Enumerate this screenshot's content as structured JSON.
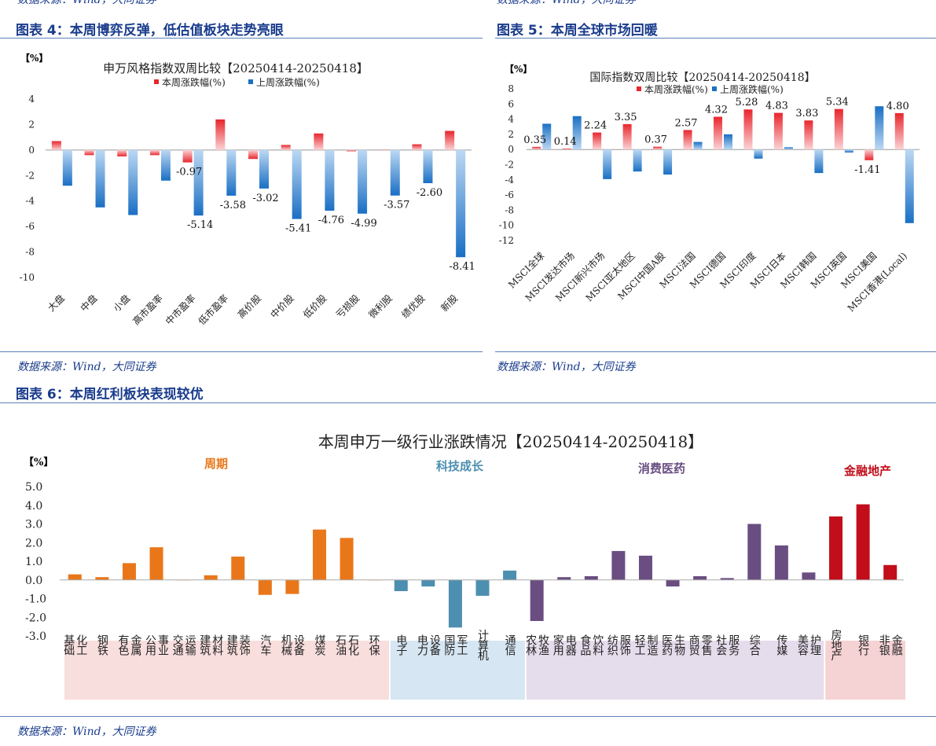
{
  "header_sources": [
    "数据来源：Wind，大同证券",
    "数据来源：Wind，大同证券"
  ],
  "fig4": {
    "caption": "图表 4：本周博弈反弹，低估值板块走势亮眼",
    "source": "数据来源：Wind，大同证券"
  },
  "fig5": {
    "caption": "图表 5：本周全球市场回暖",
    "source": "数据来源：Wind，大同证券"
  },
  "fig6": {
    "caption": "图表 6：本周红利板块表现较优",
    "source": "数据来源：Wind，大同证券"
  },
  "colors": {
    "red": "#e8262d",
    "blue": "#1a6fc4",
    "orange": "#e9771a",
    "teal": "#4d8fb0",
    "purple": "#6a4e82",
    "darkred": "#c10e1a",
    "band_orange": "#f8dedd",
    "band_teal": "#d6e6f2",
    "band_purple": "#e5dcec",
    "band_red": "#f5d2d3"
  },
  "chart_data": [
    {
      "type": "bar",
      "title": "申万风格指数双周比较【20250414-20250418】",
      "unit": "【%】",
      "ylim": [
        -10,
        4
      ],
      "yticks": [
        4,
        2,
        0,
        -2,
        -4,
        -6,
        -8,
        -10
      ],
      "categories": [
        "大盘",
        "中盘",
        "小盘",
        "高市盈率",
        "中市盈率",
        "低市盈率",
        "高价股",
        "中价股",
        "低价股",
        "亏损股",
        "微利股",
        "绩优股",
        "新股"
      ],
      "series": [
        {
          "name": "本周涨跌幅(%)",
          "values": [
            0.7,
            -0.4,
            -0.5,
            -0.4,
            -0.97,
            2.4,
            -0.7,
            0.4,
            1.3,
            -0.1,
            0.0,
            0.45,
            1.5
          ]
        },
        {
          "name": "上周涨跌幅(%)",
          "values": [
            -2.8,
            -4.5,
            -5.1,
            -2.4,
            -5.14,
            -3.58,
            -3.02,
            -5.41,
            -4.76,
            -4.99,
            -3.57,
            -2.6,
            -8.41
          ]
        }
      ],
      "data_labels": [
        {
          "category": "中市盈率",
          "series": 0,
          "text": "-0.97"
        },
        {
          "category": "中市盈率",
          "series": 1,
          "text": "-5.14"
        },
        {
          "category": "低市盈率",
          "series": 1,
          "text": "-3.58"
        },
        {
          "category": "高价股",
          "series": 1,
          "text": "-3.02"
        },
        {
          "category": "中价股",
          "series": 1,
          "text": "-5.41"
        },
        {
          "category": "低价股",
          "series": 1,
          "text": "-4.76"
        },
        {
          "category": "亏损股",
          "series": 1,
          "text": "-4.99"
        },
        {
          "category": "微利股",
          "series": 1,
          "text": "-3.57"
        },
        {
          "category": "绩优股",
          "series": 1,
          "text": "-2.60"
        },
        {
          "category": "新股",
          "series": 1,
          "text": "-8.41"
        }
      ],
      "legend": "top-center"
    },
    {
      "type": "bar",
      "title": "国际指数双周比较【20250414-20250418】",
      "unit": "【%】",
      "ylim": [
        -12,
        8
      ],
      "yticks": [
        8,
        6,
        4,
        2,
        0,
        -2,
        -4,
        -6,
        -8,
        -10,
        -12
      ],
      "categories": [
        "MSCI全球",
        "MSCI发达市场",
        "MSCI新兴市场",
        "MSCI亚太地区",
        "MSCI中国A股",
        "MSCI法国",
        "MSCI德国",
        "MSCI印度",
        "MSCI日本",
        "MSCI韩国",
        "MSCI英国",
        "MSCI美国",
        "MSCI香港(Local)"
      ],
      "series": [
        {
          "name": "本周涨跌幅(%)",
          "values": [
            0.35,
            0.14,
            2.24,
            3.35,
            0.37,
            2.57,
            4.32,
            5.28,
            4.83,
            3.83,
            5.34,
            -1.41,
            4.8
          ]
        },
        {
          "name": "上周涨跌幅(%)",
          "values": [
            3.4,
            4.4,
            -3.9,
            -2.9,
            -3.3,
            1.0,
            2.0,
            -1.2,
            0.3,
            -3.1,
            -0.4,
            5.7,
            -9.7
          ]
        }
      ],
      "data_labels": [
        {
          "category": "MSCI全球",
          "series": 0,
          "text": "0.35"
        },
        {
          "category": "MSCI发达市场",
          "series": 0,
          "text": "0.14"
        },
        {
          "category": "MSCI新兴市场",
          "series": 0,
          "text": "2.24"
        },
        {
          "category": "MSCI亚太地区",
          "series": 0,
          "text": "3.35"
        },
        {
          "category": "MSCI中国A股",
          "series": 0,
          "text": "0.37"
        },
        {
          "category": "MSCI法国",
          "series": 0,
          "text": "2.57"
        },
        {
          "category": "MSCI德国",
          "series": 0,
          "text": "4.32"
        },
        {
          "category": "MSCI印度",
          "series": 0,
          "text": "5.28"
        },
        {
          "category": "MSCI日本",
          "series": 0,
          "text": "4.83"
        },
        {
          "category": "MSCI韩国",
          "series": 0,
          "text": "3.83"
        },
        {
          "category": "MSCI英国",
          "series": 0,
          "text": "5.34"
        },
        {
          "category": "MSCI美国",
          "series": 0,
          "text": "-1.41"
        },
        {
          "category": "MSCI香港(Local)",
          "series": 0,
          "text": "4.80"
        }
      ],
      "legend": "top-center"
    },
    {
      "type": "bar",
      "title": "本周申万一级行业涨跌情况【20250414-20250418】",
      "unit": "【%】",
      "ylim": [
        -3,
        5
      ],
      "yticks": [
        "5.0",
        "4.0",
        "3.0",
        "2.0",
        "1.0",
        "0.0",
        "-1.0",
        "-2.0",
        "-3.0"
      ],
      "groups": [
        {
          "name": "周期",
          "color": "orange",
          "band": "band_orange",
          "count": 12
        },
        {
          "name": "科技成长",
          "color": "teal",
          "band": "band_teal",
          "count": 5
        },
        {
          "name": "消费医药",
          "color": "purple",
          "band": "band_purple",
          "count": 11
        },
        {
          "name": "金融地产",
          "color": "darkred",
          "band": "band_red",
          "count": 3
        }
      ],
      "categories": [
        "基础化工",
        "钢铁",
        "有色金属",
        "公用事业",
        "交通运输",
        "建筑材料",
        "建筑装饰",
        "汽车",
        "机械设备",
        "煤炭",
        "石油石化",
        "环保",
        "电子",
        "电力设备",
        "国防军工",
        "计算机",
        "通信",
        "农林牧渔",
        "家用电器",
        "食品饮料",
        "纺织服饰",
        "轻工制造",
        "医药生物",
        "商贸零售",
        "社会服务",
        "综合",
        "传媒",
        "美容护理",
        "房地产",
        "银行",
        "非银金融"
      ],
      "values": [
        0.3,
        0.15,
        0.9,
        1.75,
        0.0,
        0.25,
        1.25,
        -0.8,
        -0.75,
        2.7,
        2.25,
        0.0,
        -0.6,
        -0.35,
        -2.55,
        -0.85,
        0.5,
        -2.2,
        0.15,
        0.2,
        1.55,
        1.3,
        -0.35,
        0.2,
        0.1,
        3.0,
        1.85,
        0.4,
        3.4,
        4.05,
        0.8
      ]
    }
  ]
}
